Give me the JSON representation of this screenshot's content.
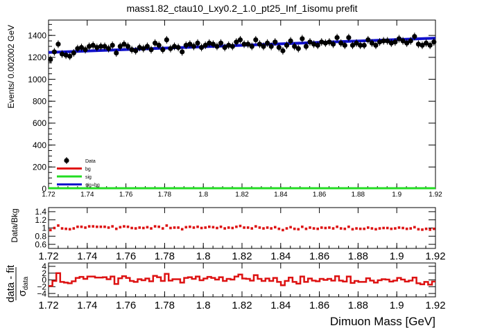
{
  "title": "mass1.82_ctau10_Lxy0.2_1.0_pt25_Inf_1isomu   prefit",
  "colors": {
    "data": "#000000",
    "bg": "#e01010",
    "sig": "#22dd22",
    "sigbg": "#1111cc",
    "ratio": "#dd1111",
    "pull": "#dd1111"
  },
  "chart_data": [
    {
      "panel": "main",
      "type": "scatter",
      "ylabel": "Events/ 0.002002 GeV",
      "xlim": [
        1.72,
        1.92
      ],
      "ylim": [
        0,
        1540
      ],
      "x_ticks": [
        "1.72",
        "1.74",
        "1.76",
        "1.78",
        "1.8",
        "1.82",
        "1.84",
        "1.86",
        "1.88",
        "1.9",
        "1.92"
      ],
      "y_ticks": [
        "0",
        "200",
        "400",
        "600",
        "800",
        "1000",
        "1200",
        "1400"
      ],
      "legend_position": "bottom-left",
      "legend": [
        {
          "label": "Data",
          "style": "marker"
        },
        {
          "label": "bg",
          "style": "line",
          "color_key": "bg"
        },
        {
          "label": "sig",
          "style": "line",
          "color_key": "sig"
        },
        {
          "label": "sig+bg",
          "style": "line",
          "color_key": "sigbg"
        }
      ],
      "series": [
        {
          "name": "Data",
          "x_start": 1.721,
          "x_step": 0.002002,
          "error": 35,
          "values": [
            1180,
            1250,
            1320,
            1230,
            1220,
            1210,
            1240,
            1280,
            1290,
            1270,
            1300,
            1310,
            1290,
            1300,
            1300,
            1280,
            1310,
            1240,
            1300,
            1320,
            1300,
            1270,
            1260,
            1290,
            1280,
            1300,
            1270,
            1330,
            1310,
            1270,
            1360,
            1280,
            1300,
            1290,
            1250,
            1310,
            1320,
            1300,
            1330,
            1290,
            1310,
            1330,
            1320,
            1300,
            1330,
            1290,
            1310,
            1300,
            1340,
            1360,
            1320,
            1320,
            1300,
            1360,
            1320,
            1300,
            1330,
            1300,
            1340,
            1290,
            1260,
            1310,
            1350,
            1300,
            1280,
            1370,
            1300,
            1340,
            1320,
            1310,
            1340,
            1330,
            1340,
            1320,
            1380,
            1330,
            1310,
            1380,
            1310,
            1330,
            1310,
            1310,
            1360,
            1330,
            1310,
            1340,
            1350,
            1350,
            1330,
            1340,
            1370,
            1350,
            1330,
            1350,
            1390,
            1320,
            1310,
            1330,
            1310,
            1340
          ]
        },
        {
          "name": "sig+bg",
          "x": [
            1.72,
            1.92
          ],
          "values": [
            1245,
            1375
          ]
        },
        {
          "name": "bg",
          "x": [
            1.72,
            1.92
          ],
          "values": [
            0,
            0
          ]
        },
        {
          "name": "sig",
          "x": [
            1.72,
            1.92
          ],
          "values": [
            0,
            0
          ]
        }
      ]
    },
    {
      "panel": "ratio",
      "type": "scatter",
      "ylabel": "Data/Bkg",
      "xlim": [
        1.72,
        1.92
      ],
      "ylim": [
        0.5,
        1.5
      ],
      "y_ticks": [
        "0.6",
        "0.8",
        "1",
        "1.2",
        "1.4"
      ],
      "x_ticks": [
        "1.72",
        "1.74",
        "1.76",
        "1.78",
        "1.8",
        "1.82",
        "1.84",
        "1.86",
        "1.88",
        "1.9",
        "1.92"
      ],
      "x_start": 1.721,
      "x_step": 0.002002,
      "values": [
        0.95,
        1.0,
        1.06,
        0.99,
        0.98,
        0.97,
        0.99,
        1.03,
        1.03,
        1.01,
        1.04,
        1.04,
        1.03,
        1.03,
        1.03,
        1.01,
        1.04,
        0.98,
        1.02,
        1.04,
        1.03,
        1.0,
        0.99,
        1.01,
        1.0,
        1.02,
        0.99,
        1.04,
        1.03,
        0.99,
        1.06,
        1.0,
        1.01,
        1.01,
        0.97,
        1.02,
        1.03,
        1.01,
        1.03,
        1.0,
        1.01,
        1.03,
        1.02,
        1.0,
        1.03,
        0.99,
        1.01,
        1.0,
        1.03,
        1.05,
        1.01,
        1.01,
        0.99,
        1.04,
        1.01,
        0.99,
        1.01,
        0.99,
        1.02,
        0.98,
        0.95,
        0.99,
        1.02,
        0.98,
        0.97,
        1.03,
        0.98,
        1.01,
        0.99,
        0.98,
        1.01,
        1.0,
        1.01,
        0.99,
        1.03,
        0.99,
        0.98,
        1.03,
        0.97,
        0.99,
        0.98,
        0.98,
        1.01,
        0.99,
        0.97,
        0.99,
        1.0,
        1.0,
        0.98,
        0.99,
        1.01,
        1.0,
        0.98,
        0.99,
        1.02,
        0.97,
        0.96,
        0.98,
        0.96,
        0.98
      ]
    },
    {
      "panel": "pull",
      "type": "step",
      "ylabel": "data - fit",
      "ylabel_denominator": "σ",
      "ylabel_subscript": "data",
      "xlabel": "Dimuon Mass [GeV]",
      "xlim": [
        1.72,
        1.92
      ],
      "ylim": [
        -5,
        5
      ],
      "y_ticks": [
        "−4",
        "−2",
        "0",
        "2",
        "4"
      ],
      "x_ticks": [
        "1.72",
        "1.74",
        "1.76",
        "1.78",
        "1.8",
        "1.82",
        "1.84",
        "1.86",
        "1.88",
        "1.9",
        "1.92"
      ],
      "x_start": 1.72,
      "x_step": 0.002002,
      "values": [
        -1.8,
        -0.3,
        2.0,
        -0.6,
        -0.8,
        -1.0,
        -0.4,
        0.6,
        0.9,
        0.3,
        1.0,
        1.0,
        0.7,
        0.7,
        0.8,
        0.2,
        1.0,
        -1.2,
        0.5,
        1.1,
        0.6,
        -0.3,
        -0.6,
        0.2,
        -0.1,
        0.4,
        -0.4,
        1.2,
        0.8,
        -0.3,
        1.8,
        -0.2,
        0.2,
        0.2,
        -0.8,
        0.6,
        0.8,
        0.3,
        1.0,
        -0.1,
        0.4,
        0.9,
        0.6,
        0.1,
        0.8,
        -0.3,
        0.3,
        0.1,
        1.0,
        1.6,
        0.4,
        0.3,
        -0.2,
        1.4,
        0.3,
        -0.3,
        0.4,
        -0.3,
        0.6,
        -0.6,
        -1.6,
        -0.3,
        0.7,
        -0.6,
        -1.1,
        1.0,
        -0.6,
        0.4,
        -0.2,
        -0.4,
        0.3,
        0.0,
        0.3,
        -0.2,
        1.1,
        -0.2,
        -0.5,
        1.0,
        -0.9,
        -0.3,
        -0.6,
        -0.6,
        0.5,
        -0.2,
        -0.8,
        -0.1,
        0.2,
        0.1,
        -0.5,
        -0.2,
        0.6,
        0.1,
        -0.5,
        -0.2,
        0.7,
        -1.0,
        -1.3,
        -0.6,
        -1.4,
        -0.5
      ]
    }
  ]
}
